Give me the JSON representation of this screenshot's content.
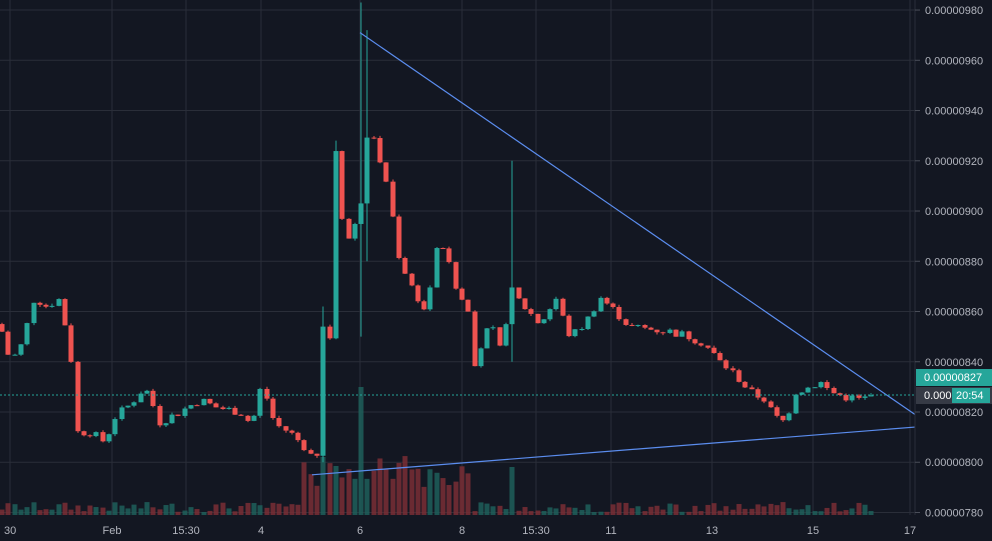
{
  "chart_data": {
    "type": "candlestick",
    "price_axis": {
      "ticks": [
        "0.00000780",
        "0.00000800",
        "0.00000820",
        "0.00000840",
        "0.00000860",
        "0.00000880",
        "0.00000900",
        "0.00000920",
        "0.00000940",
        "0.00000960",
        "0.00000980"
      ],
      "ylim": [
        7.79e-06,
        9.84e-06
      ]
    },
    "time_axis": {
      "ticks": [
        "30",
        "Feb",
        "15:30",
        "4",
        "6",
        "8",
        "15:30",
        "11",
        "13",
        "15",
        "17"
      ]
    },
    "last_price": "0.00000827",
    "countdown": "20:54",
    "crosshair_label": "0.000",
    "grid": true,
    "colors": {
      "background": "#131722",
      "up": "#26a69a",
      "down": "#ef5350",
      "trendline": "#5b8def",
      "badge": "#26a69a",
      "badge_dark": "#363a45"
    },
    "trendlines": [
      {
        "from": [
          "6",
          9.71e-06
        ],
        "to": [
          "17",
          8.19e-06
        ]
      },
      {
        "from": [
          "5",
          7.95e-06
        ],
        "to": [
          "17",
          8.14e-06
        ]
      }
    ]
  }
}
